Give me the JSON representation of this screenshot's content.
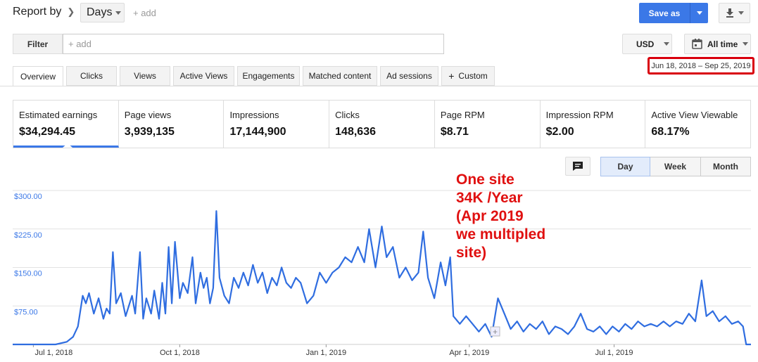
{
  "header": {
    "report_by_label": "Report by",
    "period_value": "Days",
    "add_label": "+ add",
    "save_label": "Save as"
  },
  "filter": {
    "button_label": "Filter",
    "placeholder": "+ add"
  },
  "currency": {
    "value": "USD"
  },
  "date": {
    "preset": "All time",
    "range": "Jun 18, 2018 – Sep 25, 2019"
  },
  "tabs": [
    {
      "label": "Overview",
      "active": true
    },
    {
      "label": "Clicks"
    },
    {
      "label": "Views"
    },
    {
      "label": "Active Views"
    },
    {
      "label": "Engagements"
    },
    {
      "label": "Matched content"
    },
    {
      "label": "Ad sessions"
    },
    {
      "label": "Custom"
    }
  ],
  "metrics": [
    {
      "label": "Estimated earnings",
      "value": "$34,294.45",
      "active": true
    },
    {
      "label": "Page views",
      "value": "3,939,135"
    },
    {
      "label": "Impressions",
      "value": "17,144,900"
    },
    {
      "label": "Clicks",
      "value": "148,636"
    },
    {
      "label": "Page RPM",
      "value": "$8.71"
    },
    {
      "label": "Impression RPM",
      "value": "$2.00"
    },
    {
      "label": "Active View Viewable",
      "value": "68.17%"
    }
  ],
  "granularity": [
    {
      "label": "Day",
      "active": true
    },
    {
      "label": "Week"
    },
    {
      "label": "Month"
    }
  ],
  "annotation": {
    "lines": [
      "One site",
      "34K /Year",
      "(Apr 2019",
      "we multipled",
      "site)"
    ]
  },
  "colors": {
    "accent": "#3b78e7",
    "line": "#2f6de0",
    "annotation": "#e01010",
    "highlight_border": "#d9000d"
  },
  "chart_data": {
    "type": "line",
    "y_ticks": [
      "$300.00",
      "$225.00",
      "$150.00",
      "$75.00"
    ],
    "y_tick_values": [
      300,
      225,
      150,
      75
    ],
    "ylim": [
      0,
      300
    ],
    "x_ticks": [
      "Jul 1, 2018",
      "Oct 1, 2018",
      "Jan 1, 2019",
      "Apr 1, 2019",
      "Jul 1, 2019"
    ],
    "x_tick_dates": [
      "2018-07-01",
      "2018-10-01",
      "2019-01-01",
      "2019-04-01",
      "2019-07-01"
    ],
    "x_range": [
      "2018-06-18",
      "2019-09-25"
    ],
    "series": [
      {
        "points": [
          [
            "2018-06-18",
            0
          ],
          [
            "2018-07-15",
            0
          ],
          [
            "2018-07-22",
            5
          ],
          [
            "2018-07-26",
            15
          ],
          [
            "2018-07-29",
            35
          ],
          [
            "2018-08-01",
            95
          ],
          [
            "2018-08-03",
            80
          ],
          [
            "2018-08-05",
            100
          ],
          [
            "2018-08-08",
            60
          ],
          [
            "2018-08-11",
            90
          ],
          [
            "2018-08-14",
            50
          ],
          [
            "2018-08-16",
            70
          ],
          [
            "2018-08-18",
            60
          ],
          [
            "2018-08-20",
            180
          ],
          [
            "2018-08-22",
            80
          ],
          [
            "2018-08-25",
            100
          ],
          [
            "2018-08-28",
            55
          ],
          [
            "2018-09-01",
            95
          ],
          [
            "2018-09-03",
            60
          ],
          [
            "2018-09-06",
            180
          ],
          [
            "2018-09-08",
            50
          ],
          [
            "2018-09-10",
            90
          ],
          [
            "2018-09-13",
            60
          ],
          [
            "2018-09-15",
            105
          ],
          [
            "2018-09-18",
            50
          ],
          [
            "2018-09-20",
            120
          ],
          [
            "2018-09-22",
            60
          ],
          [
            "2018-09-24",
            190
          ],
          [
            "2018-09-26",
            80
          ],
          [
            "2018-09-28",
            200
          ],
          [
            "2018-10-01",
            90
          ],
          [
            "2018-10-03",
            120
          ],
          [
            "2018-10-06",
            100
          ],
          [
            "2018-10-09",
            170
          ],
          [
            "2018-10-11",
            80
          ],
          [
            "2018-10-14",
            140
          ],
          [
            "2018-10-16",
            110
          ],
          [
            "2018-10-18",
            130
          ],
          [
            "2018-10-20",
            80
          ],
          [
            "2018-10-22",
            110
          ],
          [
            "2018-10-24",
            260
          ],
          [
            "2018-10-26",
            130
          ],
          [
            "2018-10-29",
            95
          ],
          [
            "2018-11-01",
            80
          ],
          [
            "2018-11-04",
            130
          ],
          [
            "2018-11-07",
            110
          ],
          [
            "2018-11-10",
            140
          ],
          [
            "2018-11-13",
            115
          ],
          [
            "2018-11-16",
            155
          ],
          [
            "2018-11-19",
            120
          ],
          [
            "2018-11-22",
            140
          ],
          [
            "2018-11-25",
            100
          ],
          [
            "2018-11-28",
            130
          ],
          [
            "2018-12-01",
            115
          ],
          [
            "2018-12-04",
            150
          ],
          [
            "2018-12-07",
            120
          ],
          [
            "2018-12-10",
            110
          ],
          [
            "2018-12-13",
            130
          ],
          [
            "2018-12-16",
            120
          ],
          [
            "2018-12-20",
            80
          ],
          [
            "2018-12-24",
            95
          ],
          [
            "2018-12-28",
            140
          ],
          [
            "2019-01-01",
            120
          ],
          [
            "2019-01-05",
            140
          ],
          [
            "2019-01-09",
            150
          ],
          [
            "2019-01-13",
            170
          ],
          [
            "2019-01-17",
            160
          ],
          [
            "2019-01-21",
            190
          ],
          [
            "2019-01-25",
            160
          ],
          [
            "2019-01-28",
            225
          ],
          [
            "2019-02-01",
            150
          ],
          [
            "2019-02-05",
            230
          ],
          [
            "2019-02-08",
            170
          ],
          [
            "2019-02-12",
            190
          ],
          [
            "2019-02-16",
            130
          ],
          [
            "2019-02-20",
            150
          ],
          [
            "2019-02-24",
            125
          ],
          [
            "2019-02-28",
            140
          ],
          [
            "2019-03-03",
            220
          ],
          [
            "2019-03-06",
            130
          ],
          [
            "2019-03-10",
            90
          ],
          [
            "2019-03-14",
            160
          ],
          [
            "2019-03-17",
            115
          ],
          [
            "2019-03-20",
            170
          ],
          [
            "2019-03-22",
            55
          ],
          [
            "2019-03-26",
            40
          ],
          [
            "2019-03-30",
            55
          ],
          [
            "2019-04-03",
            40
          ],
          [
            "2019-04-07",
            25
          ],
          [
            "2019-04-11",
            40
          ],
          [
            "2019-04-15",
            15
          ],
          [
            "2019-04-19",
            90
          ],
          [
            "2019-04-23",
            60
          ],
          [
            "2019-04-27",
            30
          ],
          [
            "2019-05-01",
            45
          ],
          [
            "2019-05-05",
            25
          ],
          [
            "2019-05-09",
            40
          ],
          [
            "2019-05-13",
            30
          ],
          [
            "2019-05-17",
            45
          ],
          [
            "2019-05-21",
            20
          ],
          [
            "2019-05-25",
            35
          ],
          [
            "2019-05-29",
            30
          ],
          [
            "2019-06-02",
            20
          ],
          [
            "2019-06-06",
            35
          ],
          [
            "2019-06-10",
            60
          ],
          [
            "2019-06-14",
            30
          ],
          [
            "2019-06-18",
            25
          ],
          [
            "2019-06-22",
            35
          ],
          [
            "2019-06-26",
            20
          ],
          [
            "2019-06-30",
            35
          ],
          [
            "2019-07-04",
            25
          ],
          [
            "2019-07-08",
            40
          ],
          [
            "2019-07-12",
            30
          ],
          [
            "2019-07-16",
            45
          ],
          [
            "2019-07-20",
            35
          ],
          [
            "2019-07-24",
            40
          ],
          [
            "2019-07-28",
            35
          ],
          [
            "2019-08-01",
            45
          ],
          [
            "2019-08-05",
            35
          ],
          [
            "2019-08-09",
            45
          ],
          [
            "2019-08-13",
            40
          ],
          [
            "2019-08-17",
            60
          ],
          [
            "2019-08-21",
            45
          ],
          [
            "2019-08-25",
            125
          ],
          [
            "2019-08-28",
            55
          ],
          [
            "2019-09-01",
            65
          ],
          [
            "2019-09-05",
            45
          ],
          [
            "2019-09-09",
            55
          ],
          [
            "2019-09-13",
            40
          ],
          [
            "2019-09-17",
            45
          ],
          [
            "2019-09-20",
            35
          ],
          [
            "2019-09-22",
            0
          ],
          [
            "2019-09-25",
            0
          ]
        ]
      }
    ]
  }
}
